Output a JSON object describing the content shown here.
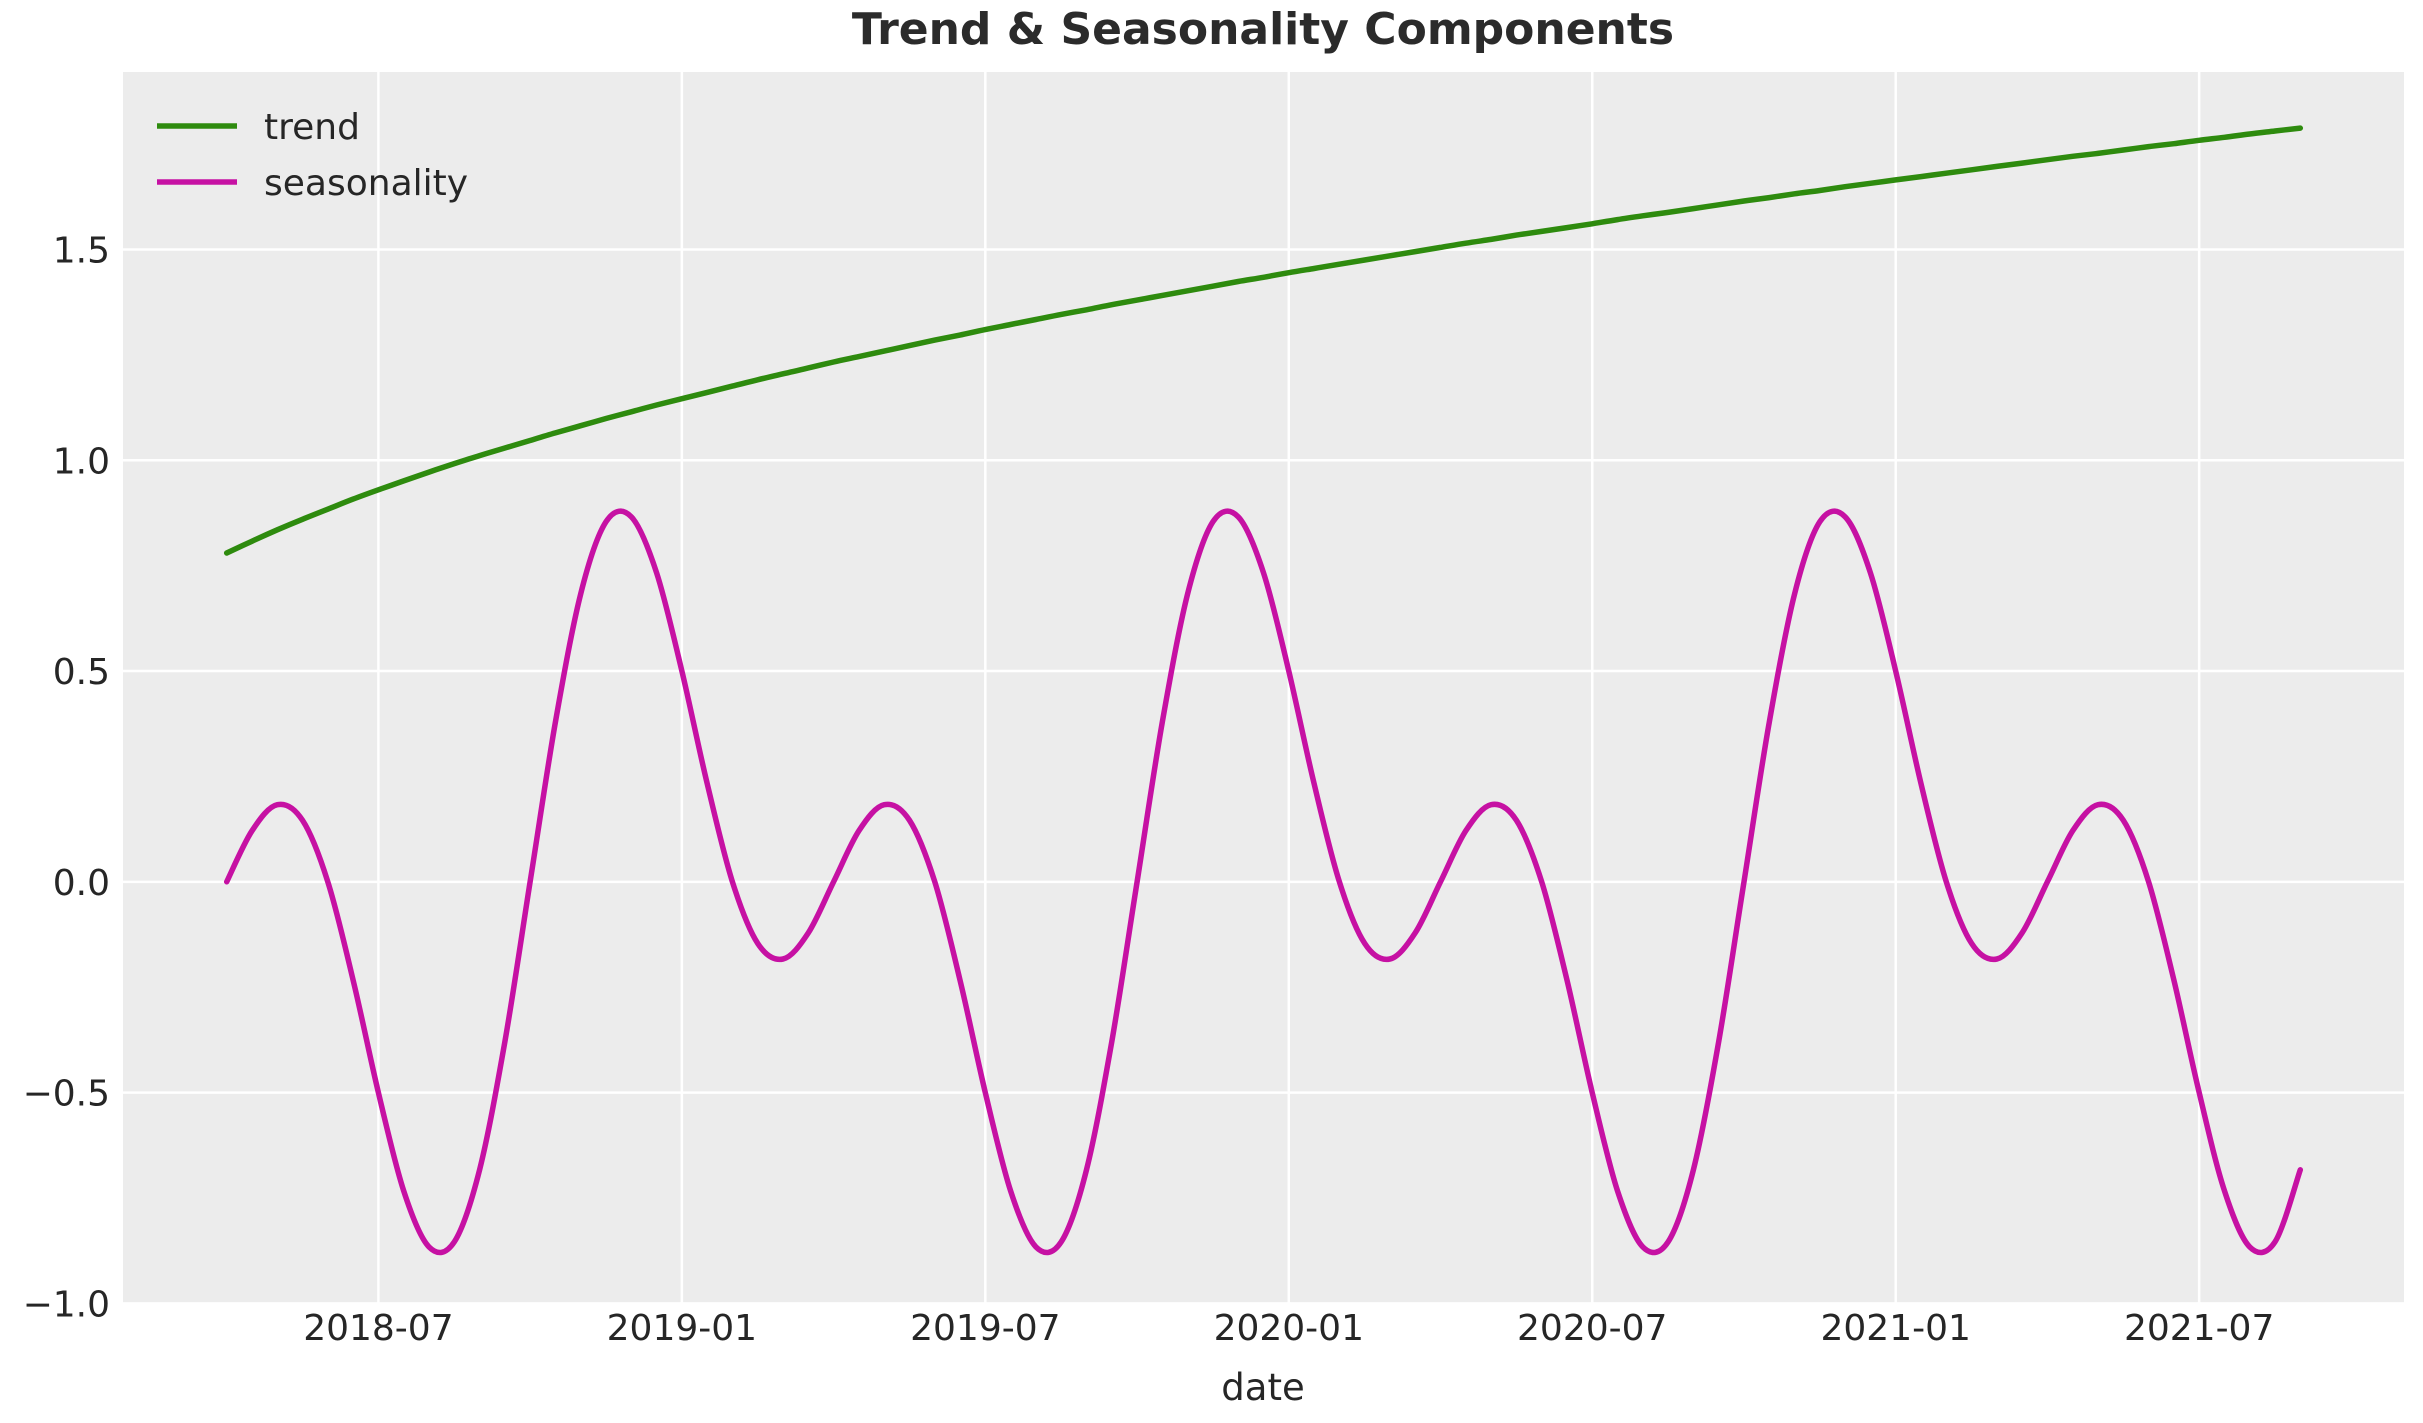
{
  "style": {
    "figure_background": "#ffffff",
    "plot_background": "#ececec",
    "grid_color": "#ffffff",
    "text_color": "#262626",
    "trend_color": "#2e8b0e",
    "seasonality_color": "#c611a3"
  },
  "chart_data": {
    "type": "line",
    "title": "Trend & Seasonality Components",
    "xlabel": "date",
    "ylabel": "",
    "grid": true,
    "legend_position": "upper left",
    "x_start_date": "2018-04",
    "x_end_date": "2021-09",
    "x_unit": "months since 2018-04-01",
    "x_step": 0.5,
    "xlim": [
      -2.05,
      43.05
    ],
    "ylim": [
      -0.999,
      1.921
    ],
    "x_ticks": [
      {
        "pos": 3,
        "label": "2018-07"
      },
      {
        "pos": 9,
        "label": "2019-01"
      },
      {
        "pos": 15,
        "label": "2019-07"
      },
      {
        "pos": 21,
        "label": "2020-01"
      },
      {
        "pos": 27,
        "label": "2020-07"
      },
      {
        "pos": 33,
        "label": "2021-01"
      },
      {
        "pos": 39,
        "label": "2021-07"
      }
    ],
    "y_ticks": [
      {
        "pos": -1.0,
        "label": "−1.0"
      },
      {
        "pos": -0.5,
        "label": "−0.5"
      },
      {
        "pos": 0.0,
        "label": "0.0"
      },
      {
        "pos": 0.5,
        "label": "0.5"
      },
      {
        "pos": 1.0,
        "label": "1.0"
      },
      {
        "pos": 1.5,
        "label": "1.5"
      }
    ],
    "series": [
      {
        "name": "trend",
        "color": "#2e8b0e",
        "values": [
          0.78,
          0.808,
          0.835,
          0.86,
          0.884,
          0.908,
          0.93,
          0.951,
          0.972,
          0.992,
          1.011,
          1.029,
          1.047,
          1.065,
          1.082,
          1.099,
          1.115,
          1.131,
          1.146,
          1.161,
          1.176,
          1.191,
          1.205,
          1.219,
          1.233,
          1.246,
          1.259,
          1.272,
          1.285,
          1.297,
          1.31,
          1.322,
          1.334,
          1.346,
          1.357,
          1.369,
          1.38,
          1.391,
          1.402,
          1.413,
          1.424,
          1.434,
          1.445,
          1.455,
          1.465,
          1.475,
          1.485,
          1.495,
          1.505,
          1.515,
          1.524,
          1.534,
          1.543,
          1.552,
          1.561,
          1.571,
          1.58,
          1.588,
          1.597,
          1.606,
          1.615,
          1.623,
          1.632,
          1.64,
          1.649,
          1.657,
          1.665,
          1.673,
          1.681,
          1.689,
          1.697,
          1.705,
          1.713,
          1.721,
          1.728,
          1.736,
          1.744,
          1.751,
          1.759,
          1.766,
          1.774,
          1.781,
          1.788
        ]
      },
      {
        "name": "seasonality",
        "color": "#c611a3",
        "values": [
          0,
          0.121,
          0.183,
          0.146,
          0,
          -0.233,
          -0.5,
          -0.733,
          -0.866,
          -0.854,
          -0.683,
          -0.379,
          0,
          0.379,
          0.683,
          0.854,
          0.866,
          0.733,
          0.5,
          0.233,
          0,
          -0.146,
          -0.183,
          -0.121,
          0,
          0.121,
          0.183,
          0.146,
          0,
          -0.233,
          -0.5,
          -0.733,
          -0.866,
          -0.854,
          -0.683,
          -0.379,
          0,
          0.379,
          0.683,
          0.854,
          0.866,
          0.733,
          0.5,
          0.233,
          0,
          -0.146,
          -0.183,
          -0.121,
          0,
          0.121,
          0.183,
          0.146,
          0,
          -0.233,
          -0.5,
          -0.733,
          -0.866,
          -0.854,
          -0.683,
          -0.379,
          0,
          0.379,
          0.683,
          0.854,
          0.866,
          0.733,
          0.5,
          0.233,
          0,
          -0.146,
          -0.183,
          -0.121,
          0,
          0.121,
          0.183,
          0.146,
          0,
          -0.233,
          -0.5,
          -0.733,
          -0.866,
          -0.854,
          -0.683
        ]
      }
    ]
  }
}
